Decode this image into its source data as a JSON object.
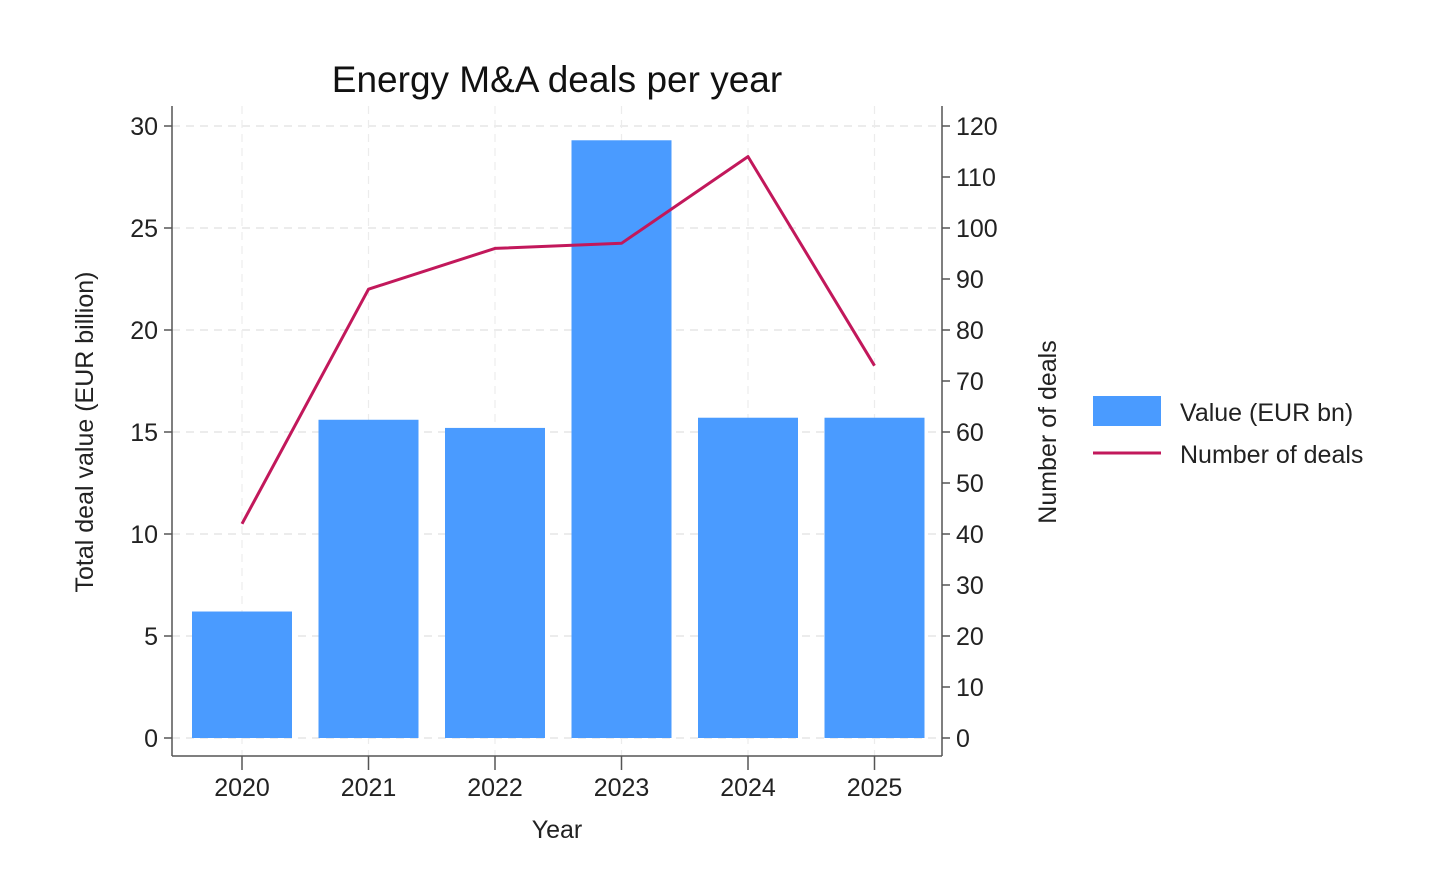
{
  "chart_data": {
    "type": "bar",
    "title": "Energy M&A deals per year",
    "xlabel": "Year",
    "ylabel": "Total deal value (EUR billion)",
    "y2label": "Number of deals",
    "categories": [
      "2020",
      "2021",
      "2022",
      "2023",
      "2024",
      "2025"
    ],
    "series": [
      {
        "name": "Value (EUR bn)",
        "type": "bar",
        "axis": "left",
        "color": "#4A9BFF",
        "values": [
          6.2,
          15.6,
          15.2,
          29.3,
          15.7,
          15.7
        ]
      },
      {
        "name": "Number of deals",
        "type": "line",
        "axis": "right",
        "color": "#C2185B",
        "values": [
          42,
          88,
          96,
          97,
          114,
          73
        ]
      }
    ],
    "ylim": [
      0,
      30
    ],
    "y2lim": [
      0,
      120
    ],
    "yticks": [
      0,
      5,
      10,
      15,
      20,
      25,
      30
    ],
    "y2ticks": [
      0,
      10,
      20,
      30,
      40,
      50,
      60,
      70,
      80,
      90,
      100,
      110,
      120
    ],
    "grid": true,
    "legend_position": "right"
  }
}
